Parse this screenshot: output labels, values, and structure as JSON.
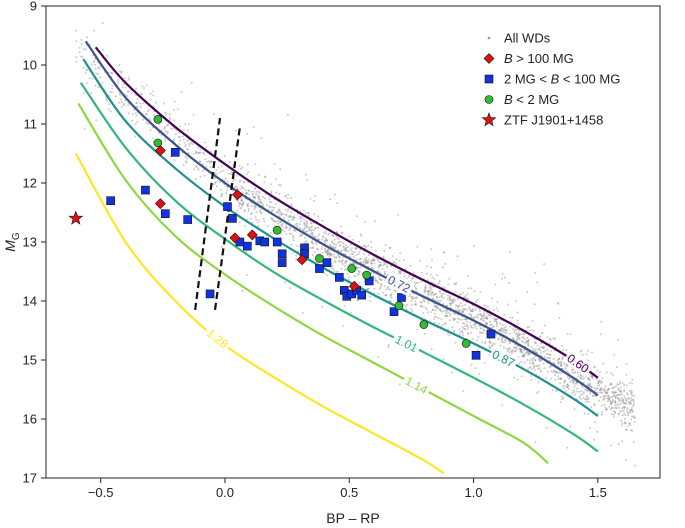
{
  "chart_data": {
    "type": "scatter",
    "xlabel": "BP – RP",
    "ylabel_main": "M",
    "ylabel_sub": "G",
    "xlim": [
      -0.72,
      1.75
    ],
    "ylim": [
      9,
      17
    ],
    "y_inverted": true,
    "x_ticks": [
      -0.5,
      0.0,
      0.5,
      1.0,
      1.5
    ],
    "x_tick_labels": [
      "−0.5",
      "0.0",
      "0.5",
      "1.0",
      "1.5"
    ],
    "y_ticks": [
      9,
      10,
      11,
      12,
      13,
      14,
      15,
      16,
      17
    ],
    "y_tick_labels": [
      "9",
      "10",
      "11",
      "12",
      "13",
      "14",
      "15",
      "16",
      "17"
    ],
    "legend": {
      "placement": "top-right",
      "entries": [
        {
          "label": "All WDs",
          "marker": "dot",
          "color": "#9a9a9a"
        },
        {
          "label_parts": [
            "B",
            " > 100 MG"
          ],
          "marker": "diamond",
          "color": "#e01010"
        },
        {
          "label_parts": [
            "2 MG < ",
            "B",
            " < 100 MG"
          ],
          "marker": "square",
          "color": "#1133dd"
        },
        {
          "label_parts": [
            "B",
            " < 2 MG"
          ],
          "marker": "circle",
          "color": "#33bb33"
        },
        {
          "label": "ZTF J1901+1458",
          "marker": "star",
          "color": "#e01010"
        }
      ]
    },
    "background_cloud": {
      "name": "All WDs",
      "color": "#8c8c8c",
      "count": 2600,
      "x_range": [
        -0.6,
        1.65
      ],
      "sequence_center": {
        "x": [
          -0.5,
          0.0,
          0.5,
          1.0,
          1.5
        ],
        "y": [
          10.1,
          12.0,
          13.3,
          14.3,
          15.5
        ]
      }
    },
    "mass_tracks": [
      {
        "mass": "0.60",
        "color": "#440154",
        "x": [
          -0.52,
          -0.4,
          -0.2,
          0.0,
          0.2,
          0.4,
          0.6,
          0.8,
          1.0,
          1.2,
          1.4,
          1.5
        ],
        "y": [
          9.7,
          10.3,
          11.05,
          11.68,
          12.25,
          12.75,
          13.22,
          13.65,
          14.05,
          14.5,
          15.0,
          15.3
        ]
      },
      {
        "mass": "0.72",
        "color": "#3b528b",
        "x": [
          -0.56,
          -0.4,
          -0.2,
          0.0,
          0.2,
          0.4,
          0.6,
          0.8,
          1.0,
          1.2,
          1.4,
          1.5
        ],
        "y": [
          9.6,
          10.55,
          11.35,
          12.0,
          12.55,
          13.05,
          13.5,
          13.93,
          14.33,
          14.78,
          15.3,
          15.6
        ]
      },
      {
        "mass": "0.87",
        "color": "#21918c",
        "x": [
          -0.57,
          -0.4,
          -0.2,
          0.0,
          0.2,
          0.4,
          0.6,
          0.8,
          1.0,
          1.2,
          1.4,
          1.5
        ],
        "y": [
          9.9,
          10.95,
          11.75,
          12.4,
          12.95,
          13.45,
          13.9,
          14.32,
          14.72,
          15.15,
          15.65,
          15.95
        ]
      },
      {
        "mass": "1.01",
        "color": "#35b779",
        "x": [
          -0.58,
          -0.4,
          -0.2,
          0.0,
          0.2,
          0.4,
          0.6,
          0.8,
          1.0,
          1.2,
          1.4,
          1.5
        ],
        "y": [
          10.3,
          11.4,
          12.3,
          12.95,
          13.52,
          14.0,
          14.45,
          14.87,
          15.3,
          15.75,
          16.25,
          16.55
        ]
      },
      {
        "mass": "1.14",
        "color": "#90d743",
        "x": [
          -0.59,
          -0.4,
          -0.2,
          0.0,
          0.2,
          0.4,
          0.6,
          0.8,
          1.0,
          1.2,
          1.3
        ],
        "y": [
          10.65,
          11.95,
          12.9,
          13.55,
          14.1,
          14.6,
          15.05,
          15.5,
          15.95,
          16.4,
          16.75
        ]
      },
      {
        "mass": "1.28",
        "color": "#fde725",
        "x": [
          -0.6,
          -0.4,
          -0.2,
          0.0,
          0.2,
          0.4,
          0.6,
          0.8,
          0.88
        ],
        "y": [
          11.5,
          13.0,
          14.0,
          14.75,
          15.3,
          15.8,
          16.25,
          16.7,
          16.92
        ]
      }
    ],
    "dashed_lines": [
      {
        "x": [
          -0.12,
          -0.02
        ],
        "y": [
          14.15,
          10.9
        ]
      },
      {
        "x": [
          -0.04,
          0.06
        ],
        "y": [
          14.15,
          11.05
        ]
      }
    ],
    "series": [
      {
        "name": "B > 100 MG",
        "marker": "diamond",
        "color": "#e01010",
        "points": [
          {
            "x": -0.26,
            "y": 11.45
          },
          {
            "x": -0.26,
            "y": 12.35
          },
          {
            "x": 0.05,
            "y": 12.2
          },
          {
            "x": 0.04,
            "y": 12.93
          },
          {
            "x": 0.11,
            "y": 12.88
          },
          {
            "x": 0.31,
            "y": 13.3
          },
          {
            "x": 0.52,
            "y": 13.75
          }
        ]
      },
      {
        "name": "2 MG < B < 100 MG",
        "marker": "square",
        "color": "#1133dd",
        "points": [
          {
            "x": -0.46,
            "y": 12.3
          },
          {
            "x": -0.32,
            "y": 12.12
          },
          {
            "x": -0.24,
            "y": 12.52
          },
          {
            "x": -0.2,
            "y": 11.48
          },
          {
            "x": -0.15,
            "y": 12.62
          },
          {
            "x": -0.06,
            "y": 13.88
          },
          {
            "x": 0.01,
            "y": 12.4
          },
          {
            "x": 0.03,
            "y": 12.6
          },
          {
            "x": 0.06,
            "y": 13.0
          },
          {
            "x": 0.09,
            "y": 13.07
          },
          {
            "x": 0.14,
            "y": 12.98
          },
          {
            "x": 0.16,
            "y": 13.0
          },
          {
            "x": 0.21,
            "y": 13.0
          },
          {
            "x": 0.23,
            "y": 13.2
          },
          {
            "x": 0.23,
            "y": 13.35
          },
          {
            "x": 0.32,
            "y": 13.1
          },
          {
            "x": 0.32,
            "y": 13.2
          },
          {
            "x": 0.38,
            "y": 13.45
          },
          {
            "x": 0.41,
            "y": 13.35
          },
          {
            "x": 0.46,
            "y": 13.6
          },
          {
            "x": 0.48,
            "y": 13.82
          },
          {
            "x": 0.49,
            "y": 13.92
          },
          {
            "x": 0.51,
            "y": 13.88
          },
          {
            "x": 0.53,
            "y": 13.82
          },
          {
            "x": 0.55,
            "y": 13.9
          },
          {
            "x": 0.58,
            "y": 13.66
          },
          {
            "x": 0.68,
            "y": 14.18
          },
          {
            "x": 0.71,
            "y": 13.94
          },
          {
            "x": 1.01,
            "y": 14.92
          },
          {
            "x": 1.07,
            "y": 14.56
          }
        ]
      },
      {
        "name": "B < 2 MG",
        "marker": "circle",
        "color": "#33bb33",
        "points": [
          {
            "x": -0.27,
            "y": 10.92
          },
          {
            "x": -0.27,
            "y": 11.32
          },
          {
            "x": 0.21,
            "y": 12.8
          },
          {
            "x": 0.38,
            "y": 13.28
          },
          {
            "x": 0.51,
            "y": 13.45
          },
          {
            "x": 0.57,
            "y": 13.56
          },
          {
            "x": 0.7,
            "y": 14.08
          },
          {
            "x": 0.8,
            "y": 14.4
          },
          {
            "x": 0.97,
            "y": 14.72
          }
        ]
      },
      {
        "name": "ZTF J1901+1458",
        "marker": "star",
        "color": "#e01010",
        "points": [
          {
            "x": -0.6,
            "y": 12.6
          }
        ]
      }
    ]
  }
}
